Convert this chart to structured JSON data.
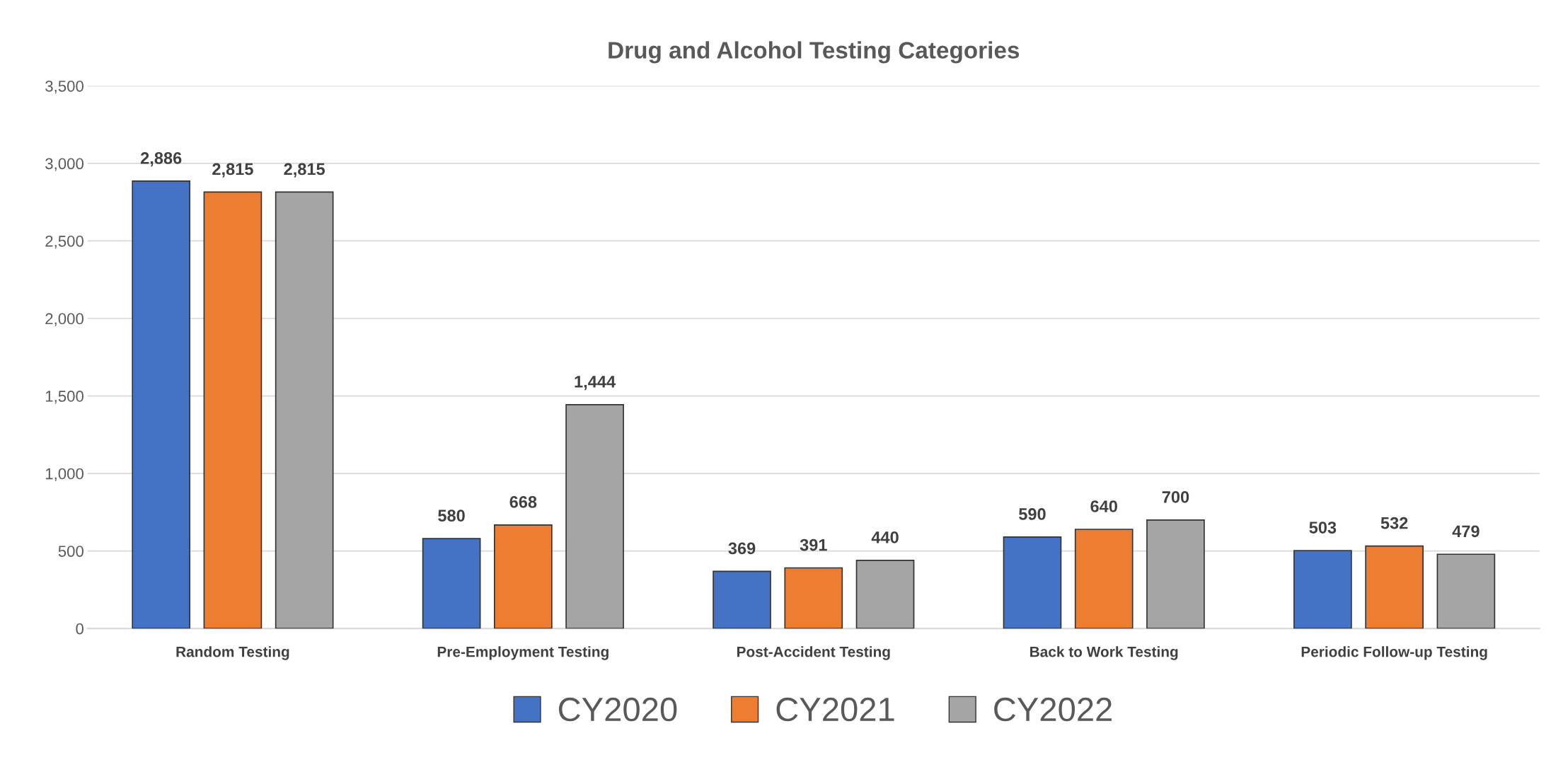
{
  "chart_data": {
    "type": "bar",
    "title": "Drug and Alcohol Testing Categories",
    "categories": [
      "Random Testing",
      "Pre-Employment Testing",
      "Post-Accident Testing",
      "Back to Work Testing",
      "Periodic Follow-up Testing"
    ],
    "series": [
      {
        "name": "CY2020",
        "color": "#4472c4",
        "values": [
          2886,
          580,
          369,
          590,
          503
        ],
        "value_labels": [
          "2,886",
          "580",
          "369",
          "590",
          "503"
        ]
      },
      {
        "name": "CY2021",
        "color": "#ed7d31",
        "values": [
          2815,
          668,
          391,
          640,
          532
        ],
        "value_labels": [
          "2,815",
          "668",
          "391",
          "640",
          "532"
        ]
      },
      {
        "name": "CY2022",
        "color": "#a5a5a5",
        "values": [
          2815,
          1444,
          440,
          700,
          479
        ],
        "value_labels": [
          "2,815",
          "1,444",
          "440",
          "700",
          "479"
        ]
      }
    ],
    "ylim": [
      0,
      3500
    ],
    "yticks": [
      0,
      500,
      {
        "value": 1000,
        "label": "1,000"
      },
      {
        "value": 1500,
        "label": "1,500"
      },
      {
        "value": 2000,
        "label": "2,000"
      },
      {
        "value": 2500,
        "label": "2,500"
      },
      {
        "value": 3000,
        "label": "3,000"
      },
      {
        "value": 3500,
        "label": "3,500"
      }
    ],
    "grid": "y",
    "legend": "bottom"
  }
}
